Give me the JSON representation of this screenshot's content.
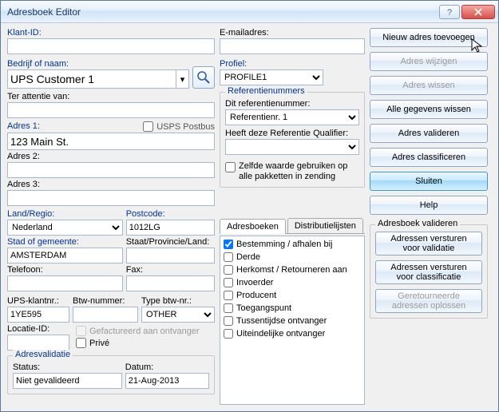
{
  "window": {
    "title": "Adresboek Editor"
  },
  "left": {
    "klant_id_label": "Klant-ID:",
    "klant_id_value": "",
    "bedrijf_label": "Bedrijf of naam:",
    "bedrijf_value": "UPS Customer 1",
    "attentie_label": "Ter attentie van:",
    "attentie_value": "",
    "adres1_label": "Adres 1:",
    "adres1_value": "123 Main St.",
    "usps_postbus_label": "USPS Postbus",
    "adres2_label": "Adres 2:",
    "adres2_value": "",
    "adres3_label": "Adres 3:",
    "adres3_value": "",
    "land_label": "Land/Regio:",
    "land_value": "Nederland",
    "postcode_label": "Postcode:",
    "postcode_value": "1012LG",
    "stad_label": "Stad of gemeente:",
    "stad_value": "AMSTERDAM",
    "staat_label": "Staat/Provincie/Land:",
    "staat_value": "",
    "telefoon_label": "Telefoon:",
    "telefoon_value": "",
    "fax_label": "Fax:",
    "fax_value": "",
    "ups_klant_label": "UPS-klantnr.:",
    "ups_klant_value": "1YE595",
    "btw_label": "Btw-nummer:",
    "btw_value": "",
    "typebtw_label": "Type btw-nr.:",
    "typebtw_value": "OTHER",
    "locatie_label": "Locatie-ID:",
    "locatie_value": "",
    "gefactureerd_label": "Gefactureerd aan ontvanger",
    "prive_label": "Privé",
    "validatie_group": "Adresvalidatie",
    "status_label": "Status:",
    "status_value": "Niet gevalideerd",
    "datum_label": "Datum:",
    "datum_value": "21-Aug-2013"
  },
  "mid": {
    "email_label": "E-mailadres:",
    "email_value": "",
    "profiel_label": "Profiel:",
    "profiel_value": "PROFILE1",
    "ref_group": "Referentienummers",
    "ditref_label": "Dit referentienummer:",
    "ditref_value": "Referentienr. 1",
    "qualifier_label": "Heeft deze Referentie Qualifier:",
    "qualifier_value": "",
    "zelfde_label": "Zelfde waarde gebruiken op alle pakketten in zending",
    "tabs": {
      "adresboeken": "Adresboeken",
      "distributielijsten": "Distributielijsten"
    },
    "list": [
      {
        "label": "Bestemming / afhalen bij",
        "checked": true
      },
      {
        "label": "Derde",
        "checked": false
      },
      {
        "label": "Herkomst / Retourneren aan",
        "checked": false
      },
      {
        "label": "Invoerder",
        "checked": false
      },
      {
        "label": "Producent",
        "checked": false
      },
      {
        "label": "Toegangspunt",
        "checked": false
      },
      {
        "label": "Tussentijdse ontvanger",
        "checked": false
      },
      {
        "label": "Uiteindelijke ontvanger",
        "checked": false
      }
    ]
  },
  "right": {
    "nieuw": "Nieuw adres toevoegen",
    "wijzigen": "Adres wijzigen",
    "wissen": "Adres wissen",
    "alle_wissen": "Alle gegevens wissen",
    "valideren": "Adres valideren",
    "classificeren": "Adres classificeren",
    "sluiten": "Sluiten",
    "help": "Help",
    "valideren_group": "Adresboek valideren",
    "versturen_validatie": "Adressen versturen\nvoor validatie",
    "versturen_classificatie": "Adressen versturen\nvoor classificatie",
    "geretourneerde": "Geretourneerde\nadressen oplossen"
  }
}
